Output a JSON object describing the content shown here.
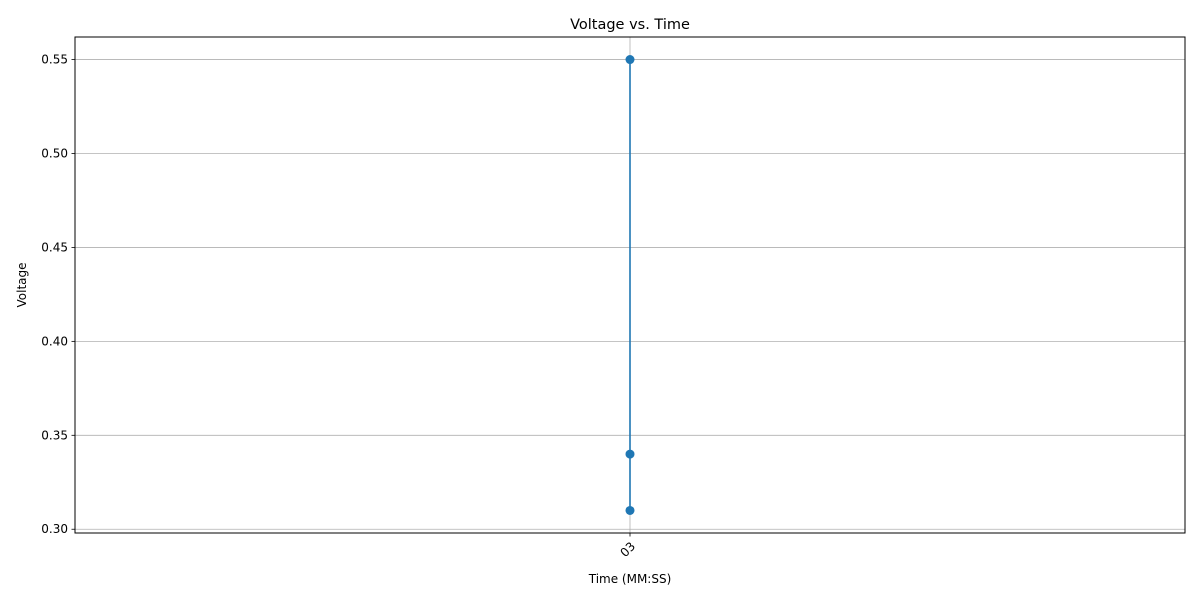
{
  "chart_data": {
    "type": "line",
    "title": "Voltage vs. Time",
    "xlabel": "Time (MM:SS)",
    "ylabel": "Voltage",
    "x_tick_labels": [
      "03"
    ],
    "y_ticks": [
      0.3,
      0.35,
      0.4,
      0.45,
      0.5,
      0.55
    ],
    "y_tick_labels": [
      "0.30",
      "0.35",
      "0.40",
      "0.45",
      "0.50",
      "0.55"
    ],
    "ylim": [
      0.298,
      0.562
    ],
    "grid": true,
    "series": [
      {
        "color": "#1f77b4",
        "marker": "circle",
        "points": [
          {
            "x": "03",
            "y": 0.55
          },
          {
            "x": "03",
            "y": 0.31
          },
          {
            "x": "03",
            "y": 0.34
          }
        ]
      }
    ]
  }
}
